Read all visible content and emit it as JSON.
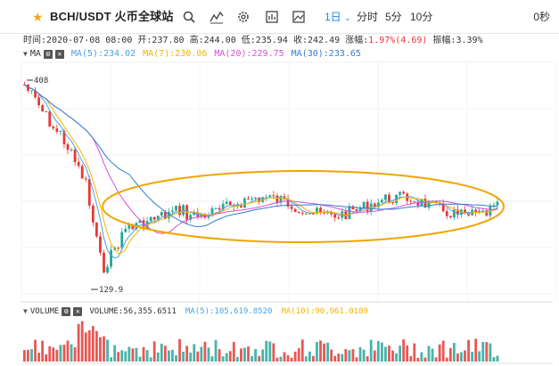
{
  "toolbar": {
    "pair": "BCH/USDT 火币全球站",
    "icons": [
      "search-icon",
      "indicator-icon",
      "settings-icon",
      "layout-icon",
      "image-icon"
    ],
    "timeframes": [
      {
        "label": "1日",
        "active": true
      },
      {
        "label": "分时",
        "active": false
      },
      {
        "label": "5分",
        "active": false
      },
      {
        "label": "10分",
        "active": false
      }
    ],
    "right_label": "0秒"
  },
  "info": {
    "time_label": "时间:",
    "time_value": "2020-07-08 08:00",
    "open_label": "开:",
    "open_value": "237.80",
    "high_label": "高:",
    "high_value": "244.00",
    "low_label": "低:",
    "low_value": "235.94",
    "close_label": "收:",
    "close_value": "242.49",
    "change_label": "涨幅:",
    "change_value": "1.97%(4.69)",
    "amp_label": "振幅:",
    "amp_value": "3.39%"
  },
  "ma": {
    "label": "MA",
    "ma5": "MA(5):234.02",
    "ma7": "MA(7):230.06",
    "ma20": "MA(20):229.75",
    "ma30": "MA(30):233.65"
  },
  "volume": {
    "label": "VOLUME",
    "value": "VOLUME:56,355.6511",
    "ma5": "MA(5):105,619.8520",
    "ma10": "MA(10):90,961.0189"
  },
  "markers": {
    "high_label": "408",
    "low_label": "129.9"
  },
  "colors": {
    "up": "#26a69a",
    "down": "#e53935",
    "ma5": "#4aa3df",
    "ma7": "#f5b400",
    "ma20": "#d94fd6",
    "ma30": "#2f7fd0",
    "ellipse": "#f0a500",
    "accent": "#1e88e5"
  }
}
